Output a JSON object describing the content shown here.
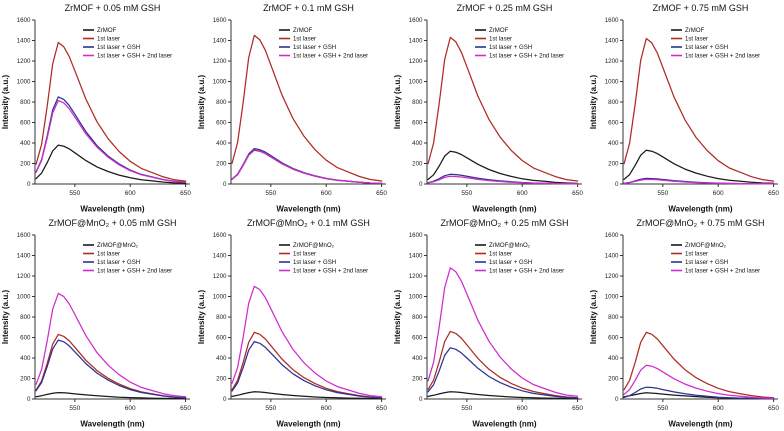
{
  "page": {
    "background": "#ffffff"
  },
  "wavelengths_nm": [
    515,
    520,
    525,
    530,
    535,
    540,
    545,
    550,
    560,
    570,
    580,
    590,
    600,
    610,
    620,
    630,
    640,
    650
  ],
  "axis": {
    "xlabel": "Wavelength (nm)",
    "ylabel": "Intensity (a.u.)",
    "xlim": [
      514,
      654
    ],
    "xticks": [
      550,
      600,
      650
    ],
    "ylim": [
      0,
      1600
    ],
    "ytick_step": 200
  },
  "colors": {
    "black": "#1a1a1a",
    "red": "#b02a23",
    "navy": "#2b3290",
    "magenta": "#cf2bcf"
  },
  "chart_data": [
    {
      "type": "line",
      "title": "ZrMOF + 0.05 mM GSH",
      "xlabel": "Wavelength (nm)",
      "ylabel": "Intensity (a.u.)",
      "xlim": [
        514,
        654
      ],
      "ylim": [
        0,
        1600
      ],
      "xticks": [
        550,
        600,
        650
      ],
      "ytick_step": 200,
      "legend_position": "top-right",
      "grid": false,
      "series": [
        {
          "name": "ZrMOF",
          "color": "#1a1a1a",
          "values": [
            53,
            106,
            209,
            323,
            380,
            369,
            342,
            304,
            228,
            167,
            122,
            87,
            61,
            42,
            30,
            19,
            11,
            8
          ]
        },
        {
          "name": "1st laser",
          "color": "#b02a23",
          "values": [
            193,
            386,
            759,
            1173,
            1380,
            1339,
            1242,
            1104,
            828,
            607,
            442,
            317,
            221,
            152,
            110,
            69,
            41,
            28
          ]
        },
        {
          "name": "1st laser + GSH",
          "color": "#2b3290",
          "values": [
            119,
            238,
            468,
            723,
            850,
            825,
            765,
            680,
            510,
            374,
            272,
            196,
            136,
            94,
            68,
            43,
            26,
            17
          ]
        },
        {
          "name": "1st laser + GSH + 2nd laser",
          "color": "#cf2bcf",
          "values": [
            114,
            228,
            448,
            693,
            815,
            791,
            734,
            652,
            489,
            359,
            261,
            187,
            130,
            90,
            65,
            41,
            24,
            16
          ]
        }
      ]
    },
    {
      "type": "line",
      "title": "ZrMOF + 0.1 mM GSH",
      "xlabel": "Wavelength (nm)",
      "ylabel": "Intensity (a.u.)",
      "xlim": [
        514,
        654
      ],
      "ylim": [
        0,
        1600
      ],
      "xticks": [
        550,
        600,
        650
      ],
      "ytick_step": 200,
      "legend_position": "top-right",
      "grid": false,
      "series": [
        {
          "name": "ZrMOF",
          "color": "#1a1a1a",
          "values": [
            46,
            92,
            182,
            281,
            330,
            320,
            297,
            264,
            198,
            145,
            106,
            76,
            53,
            36,
            26,
            17,
            10,
            7
          ]
        },
        {
          "name": "1st laser",
          "color": "#b02a23",
          "values": [
            203,
            406,
            798,
            1233,
            1450,
            1407,
            1305,
            1160,
            870,
            638,
            464,
            334,
            232,
            160,
            116,
            73,
            44,
            29
          ]
        },
        {
          "name": "1st laser + GSH",
          "color": "#2b3290",
          "values": [
            48,
            97,
            190,
            293,
            345,
            335,
            311,
            276,
            207,
            152,
            110,
            79,
            55,
            38,
            28,
            17,
            10,
            7
          ]
        },
        {
          "name": "1st laser + GSH + 2nd laser",
          "color": "#cf2bcf",
          "values": [
            46,
            93,
            183,
            282,
            332,
            322,
            299,
            266,
            199,
            146,
            106,
            76,
            53,
            37,
            27,
            17,
            10,
            7
          ]
        }
      ]
    },
    {
      "type": "line",
      "title": "ZrMOF + 0.25 mM GSH",
      "xlabel": "Wavelength (nm)",
      "ylabel": "Intensity (a.u.)",
      "xlim": [
        514,
        654
      ],
      "ylim": [
        0,
        1600
      ],
      "xticks": [
        550,
        600,
        650
      ],
      "ytick_step": 200,
      "legend_position": "top-right",
      "grid": false,
      "series": [
        {
          "name": "ZrMOF",
          "color": "#1a1a1a",
          "values": [
            45,
            90,
            176,
            272,
            320,
            310,
            288,
            256,
            192,
            141,
            102,
            74,
            51,
            35,
            26,
            16,
            10,
            6
          ]
        },
        {
          "name": "1st laser",
          "color": "#b02a23",
          "values": [
            200,
            400,
            787,
            1216,
            1430,
            1387,
            1287,
            1144,
            858,
            629,
            458,
            329,
            229,
            157,
            114,
            72,
            43,
            29
          ]
        },
        {
          "name": "1st laser + GSH",
          "color": "#2b3290",
          "values": [
            13,
            27,
            52,
            81,
            95,
            92,
            86,
            76,
            57,
            42,
            30,
            22,
            15,
            10,
            8,
            5,
            3,
            2
          ]
        },
        {
          "name": "1st laser + GSH + 2nd laser",
          "color": "#cf2bcf",
          "values": [
            11,
            21,
            41,
            64,
            75,
            73,
            68,
            60,
            45,
            33,
            24,
            17,
            12,
            8,
            6,
            4,
            2,
            2
          ]
        }
      ]
    },
    {
      "type": "line",
      "title": "ZrMOF + 0.75 mM GSH",
      "xlabel": "Wavelength (nm)",
      "ylabel": "Intensity (a.u.)",
      "xlim": [
        514,
        654
      ],
      "ylim": [
        0,
        1600
      ],
      "xticks": [
        550,
        600,
        650
      ],
      "ytick_step": 200,
      "legend_position": "top-right",
      "grid": false,
      "series": [
        {
          "name": "ZrMOF",
          "color": "#1a1a1a",
          "values": [
            46,
            92,
            182,
            281,
            330,
            320,
            297,
            264,
            198,
            145,
            106,
            76,
            53,
            36,
            26,
            17,
            10,
            7
          ]
        },
        {
          "name": "1st laser",
          "color": "#b02a23",
          "values": [
            199,
            398,
            781,
            1207,
            1420,
            1377,
            1278,
            1136,
            852,
            625,
            454,
            327,
            227,
            156,
            114,
            71,
            43,
            28
          ]
        },
        {
          "name": "1st laser + GSH",
          "color": "#2b3290",
          "values": [
            8,
            15,
            30,
            47,
            55,
            53,
            50,
            44,
            33,
            24,
            18,
            13,
            9,
            6,
            4,
            3,
            2,
            1
          ]
        },
        {
          "name": "1st laser + GSH + 2nd laser",
          "color": "#cf2bcf",
          "values": [
            6,
            13,
            25,
            38,
            45,
            44,
            41,
            36,
            27,
            20,
            14,
            10,
            7,
            5,
            4,
            2,
            1,
            1
          ]
        }
      ]
    },
    {
      "type": "line",
      "title": "ZrMOF@MnO₂ + 0.05 mM GSH",
      "xlabel": "Wavelength (nm)",
      "ylabel": "Intensity (a.u.)",
      "xlim": [
        514,
        654
      ],
      "ylim": [
        0,
        1600
      ],
      "xticks": [
        550,
        600,
        650
      ],
      "ytick_step": 200,
      "legend_position": "top-right",
      "grid": false,
      "series": [
        {
          "name": "ZrMOF@MnO₂",
          "color": "#1a1a1a",
          "values": [
            22,
            32,
            45,
            56,
            62,
            60,
            56,
            50,
            40,
            31,
            24,
            18,
            14,
            11,
            8,
            6,
            5,
            4
          ]
        },
        {
          "name": "1st laser",
          "color": "#b02a23",
          "values": [
            88,
            176,
            347,
            536,
            630,
            611,
            567,
            504,
            378,
            277,
            202,
            145,
            101,
            69,
            50,
            32,
            19,
            13
          ]
        },
        {
          "name": "1st laser + GSH",
          "color": "#2b3290",
          "values": [
            81,
            161,
            316,
            489,
            575,
            558,
            518,
            460,
            345,
            253,
            184,
            132,
            92,
            63,
            46,
            29,
            17,
            12
          ]
        },
        {
          "name": "1st laser + GSH + 2nd laser",
          "color": "#cf2bcf",
          "values": [
            144,
            288,
            567,
            876,
            1030,
            999,
            927,
            824,
            618,
            453,
            330,
            237,
            165,
            113,
            82,
            52,
            31,
            21
          ]
        }
      ]
    },
    {
      "type": "line",
      "title": "ZrMOF@MnO₂ + 0.1 mM GSH",
      "xlabel": "Wavelength (nm)",
      "ylabel": "Intensity (a.u.)",
      "xlim": [
        514,
        654
      ],
      "ylim": [
        0,
        1600
      ],
      "xticks": [
        550,
        600,
        650
      ],
      "ytick_step": 200,
      "legend_position": "top-right",
      "grid": false,
      "series": [
        {
          "name": "ZrMOF@MnO₂",
          "color": "#1a1a1a",
          "values": [
            25,
            36,
            50,
            62,
            70,
            68,
            63,
            56,
            44,
            34,
            26,
            20,
            15,
            12,
            9,
            7,
            5,
            4
          ]
        },
        {
          "name": "1st laser",
          "color": "#b02a23",
          "values": [
            91,
            182,
            358,
            553,
            650,
            631,
            585,
            520,
            390,
            286,
            208,
            150,
            104,
            72,
            52,
            33,
            20,
            13
          ]
        },
        {
          "name": "1st laser + GSH",
          "color": "#2b3290",
          "values": [
            78,
            157,
            308,
            476,
            560,
            543,
            504,
            448,
            336,
            246,
            179,
            129,
            90,
            62,
            45,
            28,
            17,
            11
          ]
        },
        {
          "name": "1st laser + GSH + 2nd laser",
          "color": "#cf2bcf",
          "values": [
            154,
            308,
            605,
            935,
            1100,
            1067,
            990,
            880,
            660,
            484,
            352,
            253,
            176,
            121,
            88,
            55,
            33,
            22
          ]
        }
      ]
    },
    {
      "type": "line",
      "title": "ZrMOF@MnO₂ + 0.25 mM GSH",
      "xlabel": "Wavelength (nm)",
      "ylabel": "Intensity (a.u.)",
      "xlim": [
        514,
        654
      ],
      "ylim": [
        0,
        1600
      ],
      "xticks": [
        550,
        600,
        650
      ],
      "ytick_step": 200,
      "legend_position": "top-right",
      "grid": false,
      "series": [
        {
          "name": "ZrMOF@MnO₂",
          "color": "#1a1a1a",
          "values": [
            25,
            36,
            50,
            62,
            70,
            68,
            63,
            56,
            44,
            34,
            26,
            20,
            15,
            12,
            9,
            7,
            5,
            4
          ]
        },
        {
          "name": "1st laser",
          "color": "#b02a23",
          "values": [
            92,
            185,
            363,
            561,
            660,
            640,
            594,
            528,
            396,
            290,
            211,
            152,
            106,
            73,
            53,
            33,
            20,
            13
          ]
        },
        {
          "name": "1st laser + GSH",
          "color": "#2b3290",
          "values": [
            70,
            140,
            275,
            425,
            500,
            485,
            450,
            400,
            300,
            220,
            160,
            115,
            80,
            55,
            40,
            25,
            15,
            10
          ]
        },
        {
          "name": "1st laser + GSH + 2nd laser",
          "color": "#cf2bcf",
          "values": [
            179,
            358,
            704,
            1088,
            1280,
            1242,
            1152,
            1024,
            768,
            563,
            410,
            294,
            205,
            141,
            102,
            64,
            38,
            26
          ]
        }
      ]
    },
    {
      "type": "line",
      "title": "ZrMOF@MnO₂ + 0.75 mM GSH",
      "xlabel": "Wavelength (nm)",
      "ylabel": "Intensity (a.u.)",
      "xlim": [
        514,
        654
      ],
      "ylim": [
        0,
        1600
      ],
      "xticks": [
        550,
        600,
        650
      ],
      "ytick_step": 200,
      "legend_position": "top-right",
      "grid": false,
      "series": [
        {
          "name": "ZrMOF@MnO₂",
          "color": "#1a1a1a",
          "values": [
            21,
            31,
            43,
            54,
            60,
            58,
            54,
            48,
            38,
            30,
            23,
            17,
            13,
            10,
            8,
            6,
            4,
            3
          ]
        },
        {
          "name": "1st laser",
          "color": "#b02a23",
          "values": [
            91,
            182,
            358,
            553,
            650,
            631,
            585,
            520,
            390,
            286,
            208,
            150,
            104,
            72,
            52,
            33,
            20,
            13
          ]
        },
        {
          "name": "1st laser + GSH",
          "color": "#2b3290",
          "values": [
            16,
            32,
            63,
            98,
            115,
            112,
            104,
            92,
            69,
            51,
            37,
            26,
            18,
            13,
            9,
            6,
            3,
            2
          ]
        },
        {
          "name": "1st laser + GSH + 2nd laser",
          "color": "#cf2bcf",
          "values": [
            46,
            92,
            182,
            281,
            330,
            320,
            297,
            264,
            198,
            145,
            106,
            76,
            53,
            36,
            26,
            17,
            10,
            7
          ]
        }
      ]
    }
  ]
}
